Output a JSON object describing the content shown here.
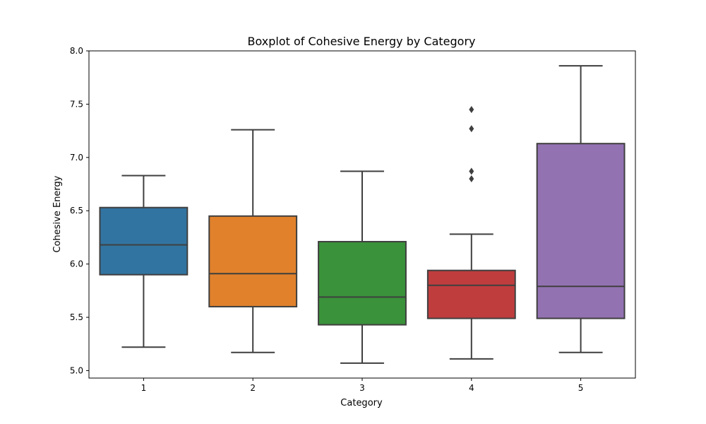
{
  "chart_data": {
    "type": "box",
    "title": "Boxplot of Cohesive Energy by Category",
    "xlabel": "Category",
    "ylabel": "Cohesive Energy",
    "ylim": [
      4.93,
      8.0
    ],
    "yticks": [
      "5.0",
      "5.5",
      "6.0",
      "6.5",
      "7.0",
      "7.5",
      "8.0"
    ],
    "grid": false,
    "categories": [
      "1",
      "2",
      "3",
      "4",
      "5"
    ],
    "boxes": [
      {
        "category": "1",
        "whisker_low": 5.22,
        "q1": 5.9,
        "median": 6.18,
        "q3": 6.53,
        "whisker_high": 6.83,
        "outliers": [],
        "color": "#3274a1"
      },
      {
        "category": "2",
        "whisker_low": 5.17,
        "q1": 5.6,
        "median": 5.91,
        "q3": 6.45,
        "whisker_high": 7.26,
        "outliers": [],
        "color": "#e1812c"
      },
      {
        "category": "3",
        "whisker_low": 5.07,
        "q1": 5.43,
        "median": 5.69,
        "q3": 6.21,
        "whisker_high": 6.87,
        "outliers": [],
        "color": "#3a923a"
      },
      {
        "category": "4",
        "whisker_low": 5.11,
        "q1": 5.49,
        "median": 5.8,
        "q3": 5.94,
        "whisker_high": 6.28,
        "outliers": [
          6.8,
          6.87,
          7.27,
          7.45
        ],
        "color": "#c03d3e"
      },
      {
        "category": "5",
        "whisker_low": 5.17,
        "q1": 5.49,
        "median": 5.79,
        "q3": 7.13,
        "whisker_high": 7.86,
        "outliers": [],
        "color": "#9372b2"
      }
    ],
    "line_color": "#3f3f3f"
  }
}
